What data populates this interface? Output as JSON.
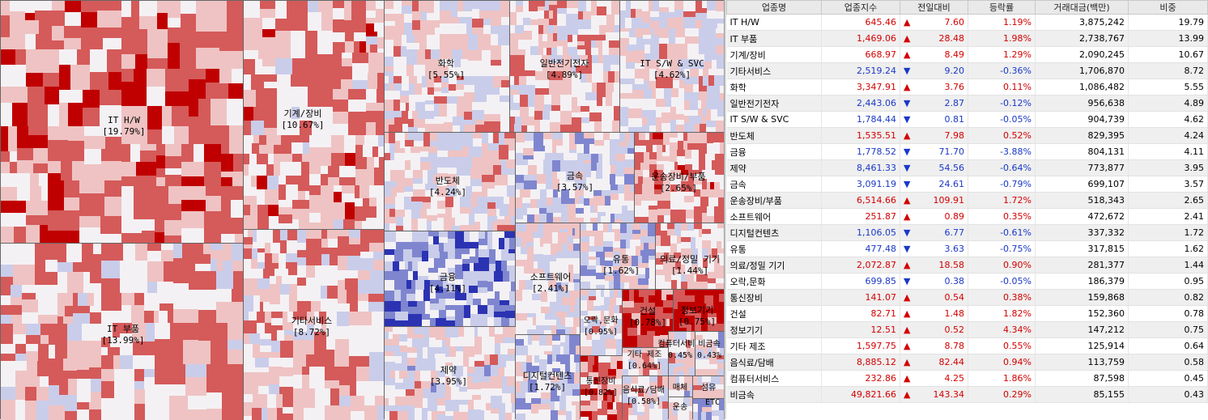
{
  "colors": {
    "strong_up": "#c00000",
    "up": "#d55a5a",
    "light_up": "#efc3c3",
    "neutral": "#f4f1f4",
    "light_down": "#c9cdea",
    "down": "#7f86cf",
    "strong_down": "#2b33b3",
    "up_text": "#d40000",
    "down_text": "#1a38c8"
  },
  "treemap": {
    "sectors": [
      {
        "name": "IT H/W",
        "weight": "[19.79%]"
      },
      {
        "name": "IT 부품",
        "weight": "[13.99%]"
      },
      {
        "name": "기계/장비",
        "weight": "[10.67%]"
      },
      {
        "name": "기타서비스",
        "weight": "[8.72%]"
      },
      {
        "name": "화학",
        "weight": "[5.55%]"
      },
      {
        "name": "일반전기전자",
        "weight": "[4.89%]"
      },
      {
        "name": "IT S/W & SVC",
        "weight": "[4.62%]"
      },
      {
        "name": "반도체",
        "weight": "[4.24%]"
      },
      {
        "name": "금속",
        "weight": "[3.57%]"
      },
      {
        "name": "운송장비/부품",
        "weight": "[2.65%]"
      },
      {
        "name": "금융",
        "weight": "[4.11%]"
      },
      {
        "name": "소프트웨어",
        "weight": "[2.41%]"
      },
      {
        "name": "유통",
        "weight": "[1.62%]"
      },
      {
        "name": "의료/정밀 기기",
        "weight": "[1.44%]"
      },
      {
        "name": "제약",
        "weight": "[3.95%]"
      },
      {
        "name": "디지털컨텐츠",
        "weight": "[1.72%]"
      },
      {
        "name": "오락,문화",
        "weight": "[0.95%]"
      },
      {
        "name": "건설",
        "weight": "[0.78%]"
      },
      {
        "name": "정보기기",
        "weight": "[0.75%]"
      },
      {
        "name": "기타 제조",
        "weight": "[0.64%]"
      },
      {
        "name": "통신장비",
        "weight": "[0.82%]"
      },
      {
        "name": "음식료/담배",
        "weight": "[0.58%]"
      },
      {
        "name": "컴퓨터서비스",
        "weight": "0.45%"
      },
      {
        "name": "비금속",
        "weight": "0.43%"
      },
      {
        "name": "매체",
        "weight": ""
      },
      {
        "name": "운송",
        "weight": ""
      },
      {
        "name": "섬유",
        "weight": ""
      },
      {
        "name": "ETC",
        "weight": ""
      }
    ]
  },
  "table": {
    "headers": [
      "업종명",
      "업종지수",
      "전일대비",
      "등락률",
      "거래대금(백만)",
      "비중"
    ],
    "rows": [
      {
        "name": "IT H/W",
        "index": "645.46",
        "dir": "up",
        "change": "7.60",
        "rate": "1.19%",
        "amount": "3,875,242",
        "share": "19.79"
      },
      {
        "name": "IT 부품",
        "index": "1,469.06",
        "dir": "up",
        "change": "28.48",
        "rate": "1.98%",
        "amount": "2,738,767",
        "share": "13.99"
      },
      {
        "name": "기계/장비",
        "index": "668.97",
        "dir": "up",
        "change": "8.49",
        "rate": "1.29%",
        "amount": "2,090,245",
        "share": "10.67"
      },
      {
        "name": "기타서비스",
        "index": "2,519.24",
        "dir": "down",
        "change": "9.20",
        "rate": "-0.36%",
        "amount": "1,706,870",
        "share": "8.72"
      },
      {
        "name": "화학",
        "index": "3,347.91",
        "dir": "up",
        "change": "3.76",
        "rate": "0.11%",
        "amount": "1,086,482",
        "share": "5.55"
      },
      {
        "name": "일반전기전자",
        "index": "2,443.06",
        "dir": "down",
        "change": "2.87",
        "rate": "-0.12%",
        "amount": "956,638",
        "share": "4.89"
      },
      {
        "name": "IT S/W & SVC",
        "index": "1,784.44",
        "dir": "down",
        "change": "0.81",
        "rate": "-0.05%",
        "amount": "904,739",
        "share": "4.62"
      },
      {
        "name": "반도체",
        "index": "1,535.51",
        "dir": "up",
        "change": "7.98",
        "rate": "0.52%",
        "amount": "829,395",
        "share": "4.24"
      },
      {
        "name": "금융",
        "index": "1,778.52",
        "dir": "down",
        "change": "71.70",
        "rate": "-3.88%",
        "amount": "804,131",
        "share": "4.11"
      },
      {
        "name": "제약",
        "index": "8,461.33",
        "dir": "down",
        "change": "54.56",
        "rate": "-0.64%",
        "amount": "773,877",
        "share": "3.95"
      },
      {
        "name": "금속",
        "index": "3,091.19",
        "dir": "down",
        "change": "24.61",
        "rate": "-0.79%",
        "amount": "699,107",
        "share": "3.57"
      },
      {
        "name": "운송장비/부품",
        "index": "6,514.66",
        "dir": "up",
        "change": "109.91",
        "rate": "1.72%",
        "amount": "518,343",
        "share": "2.65"
      },
      {
        "name": "소프트웨어",
        "index": "251.87",
        "dir": "up",
        "change": "0.89",
        "rate": "0.35%",
        "amount": "472,672",
        "share": "2.41"
      },
      {
        "name": "디지털컨텐츠",
        "index": "1,106.05",
        "dir": "down",
        "change": "6.77",
        "rate": "-0.61%",
        "amount": "337,332",
        "share": "1.72"
      },
      {
        "name": "유통",
        "index": "477.48",
        "dir": "down",
        "change": "3.63",
        "rate": "-0.75%",
        "amount": "317,815",
        "share": "1.62"
      },
      {
        "name": "의료/정밀 기기",
        "index": "2,072.87",
        "dir": "up",
        "change": "18.58",
        "rate": "0.90%",
        "amount": "281,377",
        "share": "1.44"
      },
      {
        "name": "오락,문화",
        "index": "699.85",
        "dir": "down",
        "change": "0.38",
        "rate": "-0.05%",
        "amount": "186,379",
        "share": "0.95"
      },
      {
        "name": "통신장비",
        "index": "141.07",
        "dir": "up",
        "change": "0.54",
        "rate": "0.38%",
        "amount": "159,868",
        "share": "0.82"
      },
      {
        "name": "건설",
        "index": "82.71",
        "dir": "up",
        "change": "1.48",
        "rate": "1.82%",
        "amount": "152,360",
        "share": "0.78"
      },
      {
        "name": "정보기기",
        "index": "12.51",
        "dir": "up",
        "change": "0.52",
        "rate": "4.34%",
        "amount": "147,212",
        "share": "0.75"
      },
      {
        "name": "기타 제조",
        "index": "1,597.75",
        "dir": "up",
        "change": "8.78",
        "rate": "0.55%",
        "amount": "125,914",
        "share": "0.64"
      },
      {
        "name": "음식료/담배",
        "index": "8,885.12",
        "dir": "up",
        "change": "82.44",
        "rate": "0.94%",
        "amount": "113,759",
        "share": "0.58"
      },
      {
        "name": "컴퓨터서비스",
        "index": "232.86",
        "dir": "up",
        "change": "4.25",
        "rate": "1.86%",
        "amount": "87,598",
        "share": "0.45"
      },
      {
        "name": "비금속",
        "index": "49,821.66",
        "dir": "up",
        "change": "143.34",
        "rate": "0.29%",
        "amount": "85,155",
        "share": "0.43"
      }
    ]
  }
}
